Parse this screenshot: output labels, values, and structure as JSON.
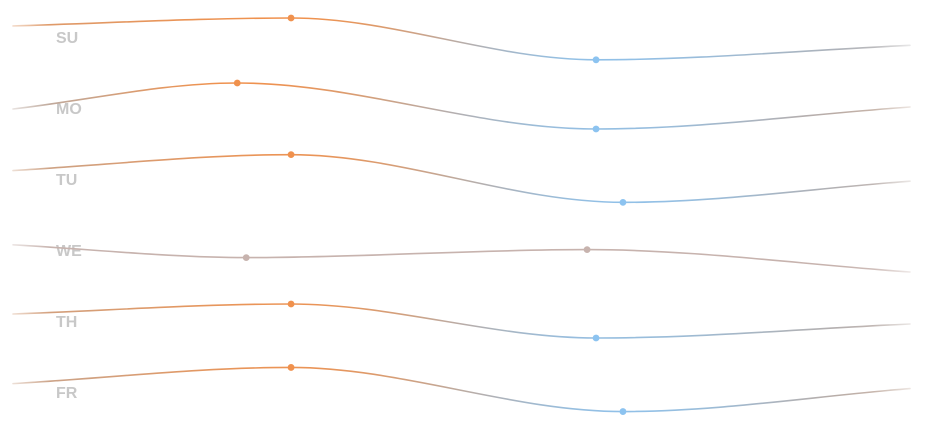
{
  "chart_data": {
    "type": "line",
    "title": "",
    "xlabel": "",
    "ylabel": "",
    "grid": false,
    "legend": "none",
    "colors": {
      "warm": "#f0914d",
      "cool": "#8cc3f0",
      "neutral": "#c7b3ae",
      "divider": "#e6e6e6",
      "label": "#c8c8c8"
    },
    "series": [
      {
        "name": "SU",
        "curve": [
          [
            0,
            0.18
          ],
          [
            0.31,
            0.0
          ],
          [
            0.65,
            0.95
          ],
          [
            1.0,
            0.62
          ]
        ],
        "markers": [
          {
            "x": 0.31,
            "y": 0.0,
            "kind": "warm"
          },
          {
            "x": 0.65,
            "y": 0.95,
            "kind": "cool"
          }
        ]
      },
      {
        "name": "MO",
        "curve": [
          [
            0,
            0.52
          ],
          [
            0.25,
            0.0
          ],
          [
            0.65,
            0.92
          ],
          [
            1.0,
            0.48
          ]
        ],
        "markers": [
          {
            "x": 0.25,
            "y": 0.0,
            "kind": "warm"
          },
          {
            "x": 0.65,
            "y": 0.92,
            "kind": "cool"
          }
        ]
      },
      {
        "name": "TU",
        "curve": [
          [
            0,
            0.35
          ],
          [
            0.31,
            0.05
          ],
          [
            0.68,
            0.95
          ],
          [
            1.0,
            0.55
          ]
        ],
        "markers": [
          {
            "x": 0.31,
            "y": 0.05,
            "kind": "warm"
          },
          {
            "x": 0.68,
            "y": 0.95,
            "kind": "cool"
          }
        ]
      },
      {
        "name": "WE",
        "curve": [
          [
            0,
            0.15
          ],
          [
            0.26,
            0.55
          ],
          [
            0.64,
            0.3
          ],
          [
            1.0,
            1.0
          ]
        ],
        "markers": [
          {
            "x": 0.26,
            "y": 0.55,
            "kind": "neutral"
          },
          {
            "x": 0.64,
            "y": 0.3,
            "kind": "neutral"
          }
        ]
      },
      {
        "name": "TH",
        "curve": [
          [
            0,
            0.3
          ],
          [
            0.31,
            0.05
          ],
          [
            0.65,
            0.9
          ],
          [
            1.0,
            0.55
          ]
        ],
        "markers": [
          {
            "x": 0.31,
            "y": 0.05,
            "kind": "warm"
          },
          {
            "x": 0.65,
            "y": 0.9,
            "kind": "cool"
          }
        ]
      },
      {
        "name": "FR",
        "curve": [
          [
            0,
            0.38
          ],
          [
            0.31,
            0.05
          ],
          [
            0.68,
            0.95
          ],
          [
            1.0,
            0.48
          ]
        ],
        "markers": [
          {
            "x": 0.31,
            "y": 0.05,
            "kind": "warm"
          },
          {
            "x": 0.68,
            "y": 0.95,
            "kind": "cool"
          }
        ]
      }
    ]
  }
}
